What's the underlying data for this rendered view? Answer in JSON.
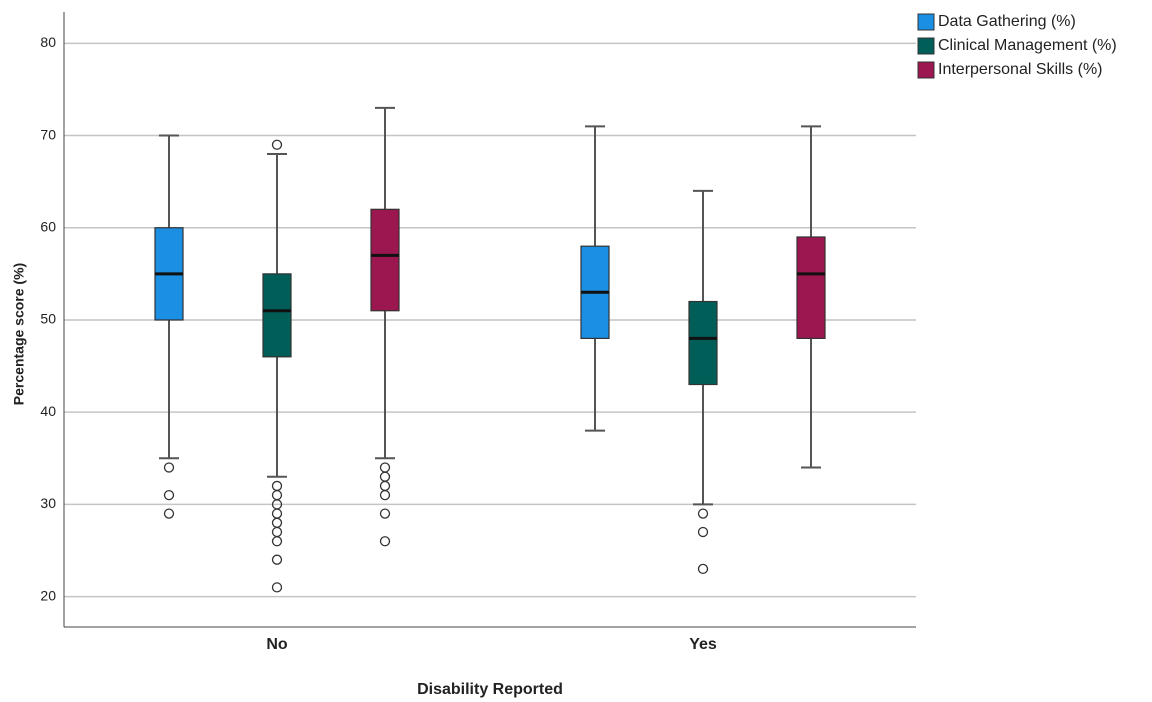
{
  "chart_data": {
    "type": "box",
    "x_label": "Disability Reported",
    "y_label": "Percentage score (%)",
    "categories": [
      "No",
      "Yes"
    ],
    "ylim": [
      16.7,
      83.4
    ],
    "yticks": [
      20,
      30,
      40,
      50,
      60,
      70,
      80
    ],
    "grid": true,
    "legend": "top-right",
    "series": [
      {
        "name": "Data Gathering (%)",
        "color": "#1a8fe3",
        "min": [
          35,
          38
        ],
        "q1": [
          50,
          48
        ],
        "median": [
          55,
          53
        ],
        "q3": [
          60,
          58
        ],
        "max": [
          70,
          71
        ],
        "outliers": [
          [
            34,
            31,
            29
          ],
          []
        ]
      },
      {
        "name": "Clinical Management (%)",
        "color": "#005e58",
        "min": [
          33,
          30
        ],
        "q1": [
          46,
          43
        ],
        "median": [
          51,
          48
        ],
        "q3": [
          55,
          52
        ],
        "max": [
          68,
          64
        ],
        "outliers": [
          [
            69,
            32,
            31,
            30,
            29,
            28,
            27,
            26,
            24,
            21
          ],
          [
            29,
            27,
            23
          ]
        ]
      },
      {
        "name": "Interpersonal Skills (%)",
        "color": "#9c1650",
        "min": [
          35,
          34
        ],
        "q1": [
          51,
          48
        ],
        "median": [
          57,
          55
        ],
        "q3": [
          62,
          59
        ],
        "max": [
          73,
          71
        ],
        "outliers": [
          [
            34,
            33,
            32,
            31,
            29,
            26
          ],
          []
        ]
      }
    ]
  }
}
